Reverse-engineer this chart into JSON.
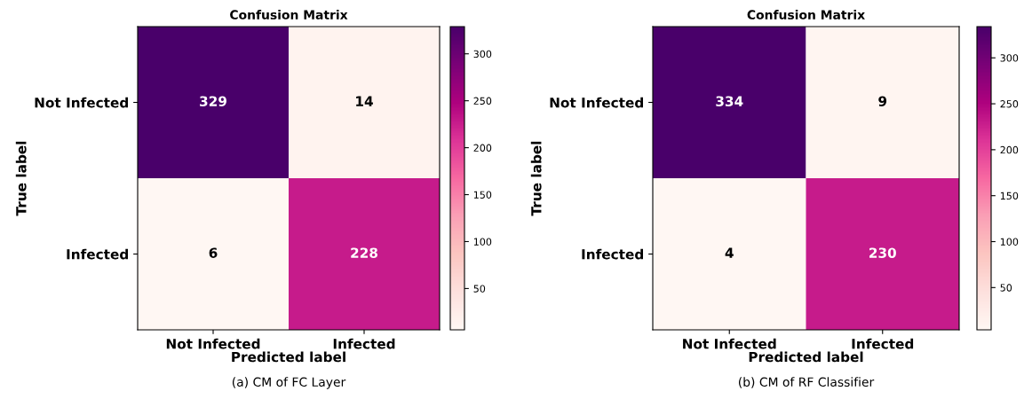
{
  "chart_data": [
    {
      "type": "heatmap",
      "title": "Confusion Matrix",
      "xlabel": "Predicted label",
      "ylabel": "True label",
      "categories": [
        "Not Infected",
        "Infected"
      ],
      "y_categories": [
        "Not Infected",
        "Infected"
      ],
      "cells": [
        [
          329,
          14
        ],
        [
          6,
          228
        ]
      ],
      "data_labels": true,
      "clim": [
        6,
        329
      ],
      "cticks": [
        50,
        100,
        150,
        200,
        250,
        300
      ],
      "annotations": [
        "(a) CM of FC Layer"
      ]
    },
    {
      "type": "heatmap",
      "title": "Confusion Matrix",
      "xlabel": "Predicted label",
      "ylabel": "True label",
      "categories": [
        "Not Infected",
        "Infected"
      ],
      "y_categories": [
        "Not Infected",
        "Infected"
      ],
      "cells": [
        [
          334,
          9
        ],
        [
          4,
          230
        ]
      ],
      "data_labels": true,
      "clim": [
        4,
        334
      ],
      "cticks": [
        50,
        100,
        150,
        200,
        250,
        300
      ],
      "annotations": [
        "(b) CM of RF Classifier"
      ]
    }
  ]
}
